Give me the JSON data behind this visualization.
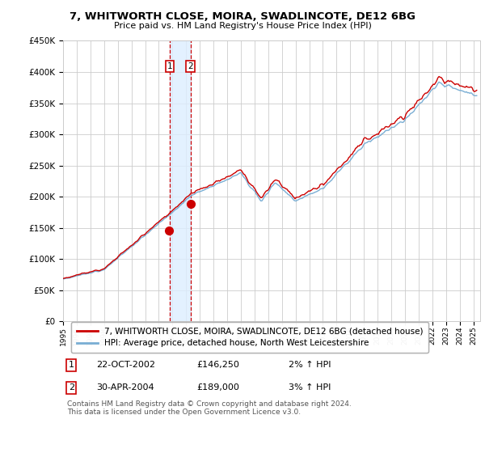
{
  "title": "7, WHITWORTH CLOSE, MOIRA, SWADLINCOTE, DE12 6BG",
  "subtitle": "Price paid vs. HM Land Registry's House Price Index (HPI)",
  "red_label": "7, WHITWORTH CLOSE, MOIRA, SWADLINCOTE, DE12 6BG (detached house)",
  "blue_label": "HPI: Average price, detached house, North West Leicestershire",
  "purchase1": {
    "label": "1",
    "date": "22-OCT-2002",
    "price": 146250,
    "hpi_pct": "2%",
    "x": 2002.8
  },
  "purchase2": {
    "label": "2",
    "date": "30-APR-2004",
    "price": 189000,
    "hpi_pct": "3%",
    "x": 2004.33
  },
  "xmin": 1995.0,
  "xmax": 2025.5,
  "ymin": 0,
  "ymax": 450000,
  "yticks": [
    0,
    50000,
    100000,
    150000,
    200000,
    250000,
    300000,
    350000,
    400000,
    450000
  ],
  "ytick_labels": [
    "£0",
    "£50K",
    "£100K",
    "£150K",
    "£200K",
    "£250K",
    "£300K",
    "£350K",
    "£400K",
    "£450K"
  ],
  "xticks": [
    1995,
    1996,
    1997,
    1998,
    1999,
    2000,
    2001,
    2002,
    2003,
    2004,
    2005,
    2006,
    2007,
    2008,
    2009,
    2010,
    2011,
    2012,
    2013,
    2014,
    2015,
    2016,
    2017,
    2018,
    2019,
    2020,
    2021,
    2022,
    2023,
    2024,
    2025
  ],
  "red_color": "#cc0000",
  "blue_color": "#7aaed4",
  "bg_color": "#ffffff",
  "grid_color": "#cccccc",
  "shade_color": "#ddeeff",
  "footer": "Contains HM Land Registry data © Crown copyright and database right 2024.\nThis data is licensed under the Open Government Licence v3.0."
}
